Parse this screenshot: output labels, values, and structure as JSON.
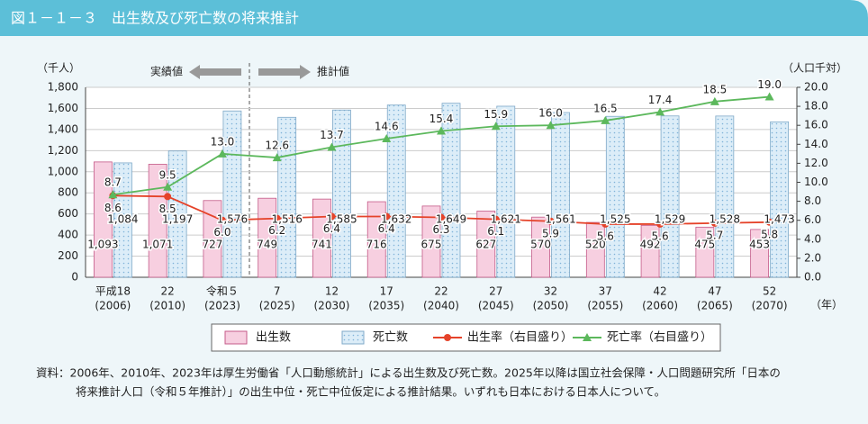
{
  "chart_data": {
    "type": "bar",
    "title": "図１－１－３　出生数及び死亡数の将来推計",
    "y_label": "（千人）",
    "y2_label": "（人口千対）",
    "x_label": "（年）",
    "annotations": [
      "実績値",
      "推計値"
    ],
    "categories": [
      "平成18",
      "22",
      "令和５",
      "7",
      "12",
      "17",
      "22",
      "27",
      "32",
      "37",
      "42",
      "47",
      "52"
    ],
    "category_years": [
      "(2006)",
      "(2010)",
      "(2023)",
      "(2025)",
      "(2030)",
      "(2035)",
      "(2040)",
      "(2045)",
      "(2050)",
      "(2055)",
      "(2060)",
      "(2065)",
      "(2070)"
    ],
    "ylim": [
      0,
      1800
    ],
    "yticks": [
      0,
      200,
      400,
      600,
      800,
      {
        "value": 1000,
        "label": "1,000"
      },
      {
        "value": 1200,
        "label": "1,200"
      },
      {
        "value": 1400,
        "label": "1,400"
      },
      {
        "value": 1600,
        "label": "1,600"
      },
      {
        "value": 1800,
        "label": "1,800"
      }
    ],
    "y2lim": [
      0,
      20
    ],
    "y2ticks": [
      {
        "value": 0,
        "label": "0.0"
      },
      {
        "value": 2,
        "label": "2.0"
      },
      {
        "value": 4,
        "label": "4.0"
      },
      {
        "value": 6,
        "label": "6.0"
      },
      {
        "value": 8,
        "label": "8.0"
      },
      {
        "value": 10,
        "label": "10.0"
      },
      {
        "value": 12,
        "label": "12.0"
      },
      {
        "value": 14,
        "label": "14.0"
      },
      {
        "value": 16,
        "label": "16.0"
      },
      {
        "value": 18,
        "label": "18.0"
      },
      {
        "value": 20,
        "label": "20.0"
      }
    ],
    "series": [
      {
        "name": "出生数",
        "type": "bar",
        "color": "#f7cfe0",
        "values": [
          1093,
          1071,
          727,
          749,
          741,
          716,
          675,
          627,
          570,
          520,
          492,
          475,
          453
        ],
        "value_labels": [
          "1,093",
          "1,071",
          "727",
          "749",
          "741",
          "716",
          "675",
          "627",
          "570",
          "520",
          "492",
          "475",
          "453"
        ]
      },
      {
        "name": "死亡数",
        "type": "bar",
        "color": "#d6eaf7",
        "values": [
          1084,
          1197,
          1576,
          1516,
          1585,
          1632,
          1649,
          1621,
          1561,
          1525,
          1529,
          1528,
          1473
        ],
        "value_labels": [
          "1,084",
          "1,197",
          "1,576",
          "1,516",
          "1,585",
          "1,632",
          "1,649",
          "1,621",
          "1,561",
          "1,525",
          "1,529",
          "1,528",
          "1,473"
        ]
      },
      {
        "name": "出生率（右目盛り）",
        "type": "line",
        "axis": "y2",
        "color": "#e5432a",
        "values": [
          8.6,
          8.5,
          6.0,
          6.2,
          6.4,
          6.4,
          6.3,
          6.1,
          5.9,
          5.6,
          5.6,
          5.7,
          5.8
        ],
        "value_labels": [
          "8.6",
          "8.5",
          "6.0",
          "6.2",
          "6.4",
          "6.4",
          "6.3",
          "6.1",
          "5.9",
          "5.6",
          "5.6",
          "5.7",
          "5.8"
        ]
      },
      {
        "name": "死亡率（右目盛り）",
        "type": "line",
        "axis": "y2",
        "color": "#5cb85c",
        "values": [
          8.7,
          9.5,
          13.0,
          12.6,
          13.7,
          14.6,
          15.4,
          15.9,
          16.0,
          16.5,
          17.4,
          18.5,
          19.0
        ],
        "value_labels": [
          "8.7",
          "9.5",
          "13.0",
          "12.6",
          "13.7",
          "14.6",
          "15.4",
          "15.9",
          "16.0",
          "16.5",
          "17.4",
          "18.5",
          "19.0"
        ]
      }
    ],
    "notes": [
      "資料：2006年、2010年、2023年は厚生労働省「人口動態統計」による出生数及び死亡数。2025年以降は国立社会保障・人口問題研究所「日本の",
      "将来推計人口（令和５年推計）」の出生中位・死亡中位仮定による推計結果。いずれも日本における日本人について。"
    ]
  }
}
